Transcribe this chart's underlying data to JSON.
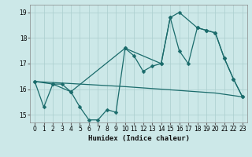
{
  "xlabel": "Humidex (Indice chaleur)",
  "bg_color": "#cce8e8",
  "grid_color": "#aacece",
  "line_color": "#1a6b6b",
  "xlim": [
    -0.5,
    23.5
  ],
  "ylim": [
    14.7,
    19.3
  ],
  "yticks": [
    15,
    16,
    17,
    18,
    19
  ],
  "xticks": [
    0,
    1,
    2,
    3,
    4,
    5,
    6,
    7,
    8,
    9,
    10,
    11,
    12,
    13,
    14,
    15,
    16,
    17,
    18,
    19,
    20,
    21,
    22,
    23
  ],
  "line1_x": [
    0,
    1,
    2,
    3,
    4,
    5,
    6,
    7,
    8,
    9,
    10,
    11,
    12,
    13,
    14,
    15,
    16,
    17,
    18,
    19,
    20,
    21,
    22,
    23
  ],
  "line1_y": [
    16.3,
    15.3,
    16.2,
    16.2,
    15.9,
    15.3,
    14.8,
    14.8,
    15.2,
    15.1,
    17.6,
    17.3,
    16.7,
    16.9,
    17.0,
    18.8,
    17.5,
    17.0,
    18.4,
    18.3,
    18.2,
    17.2,
    16.4,
    15.7
  ],
  "line2_x": [
    0,
    2,
    4,
    10,
    14,
    15,
    16,
    18,
    19,
    20,
    21,
    22,
    23
  ],
  "line2_y": [
    16.3,
    16.2,
    15.9,
    17.6,
    17.0,
    18.8,
    19.0,
    18.4,
    18.3,
    18.2,
    17.2,
    16.4,
    15.7
  ],
  "line3_x": [
    0,
    10,
    14,
    20,
    23
  ],
  "line3_y": [
    16.3,
    16.1,
    16.0,
    15.85,
    15.7
  ]
}
